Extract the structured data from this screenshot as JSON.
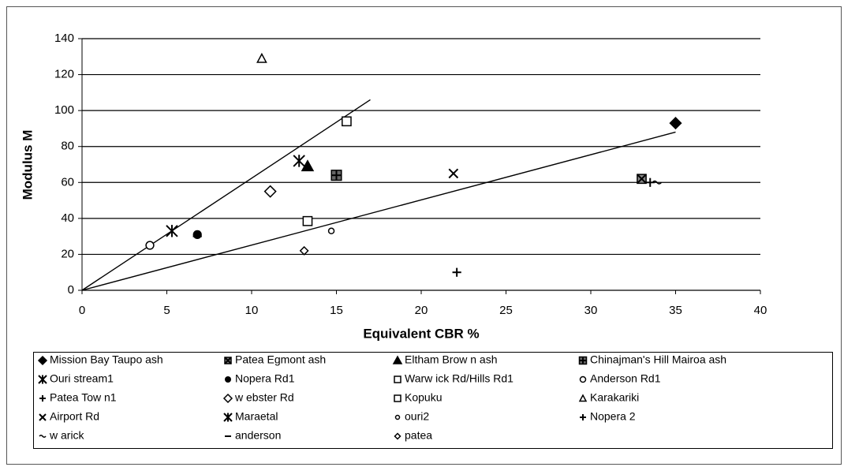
{
  "chart_data": {
    "type": "scatter",
    "x_label": "Equivalent CBR %",
    "y_label": "Modulus M",
    "xlim": [
      0,
      40
    ],
    "xticks": [
      0,
      5,
      10,
      15,
      20,
      25,
      30,
      35,
      40
    ],
    "ylim": [
      0,
      140
    ],
    "yticks": [
      0,
      20,
      40,
      60,
      80,
      100,
      120,
      140
    ],
    "grid": true,
    "color": "#000000",
    "legend": "bottom",
    "series": [
      {
        "name": "Mission Bay Taupo ash",
        "marker": "diamond-filled",
        "x": [
          35
        ],
        "values": [
          93
        ]
      },
      {
        "name": "Patea Egmont ash",
        "marker": "square-hatched",
        "x": [
          33
        ],
        "values": [
          62
        ]
      },
      {
        "name": "Eltham Brow n ash",
        "marker": "triangle-filled",
        "x": [
          13.3
        ],
        "values": [
          69
        ]
      },
      {
        "name": "Chinajman's Hill Mairoa ash",
        "marker": "square-crosshatch",
        "x": [
          15
        ],
        "values": [
          64
        ]
      },
      {
        "name": "Ouri stream1",
        "marker": "asterisk",
        "x": [
          12.8
        ],
        "values": [
          72
        ]
      },
      {
        "name": "Nopera Rd1",
        "marker": "circle-filled",
        "x": [
          6.8
        ],
        "values": [
          31
        ]
      },
      {
        "name": "Warw ick Rd/Hills Rd1",
        "marker": "square-open",
        "x": [
          13.3
        ],
        "values": [
          38.5
        ]
      },
      {
        "name": "Anderson Rd1",
        "marker": "circle-open",
        "x": [
          4
        ],
        "values": [
          25
        ]
      },
      {
        "name": "Patea Tow n1",
        "marker": "plus",
        "x": [
          33.5
        ],
        "values": [
          60
        ]
      },
      {
        "name": "w ebster Rd",
        "marker": "diamond-open",
        "x": [
          11.1
        ],
        "values": [
          55
        ]
      },
      {
        "name": "Kopuku",
        "marker": "square-open",
        "x": [
          15.6
        ],
        "values": [
          94
        ]
      },
      {
        "name": "Karakariki",
        "marker": "triangle-open",
        "x": [
          10.6
        ],
        "values": [
          129
        ]
      },
      {
        "name": "Airport Rd",
        "marker": "x",
        "x": [
          21.9
        ],
        "values": [
          65
        ]
      },
      {
        "name": "Maraetal",
        "marker": "asterisk",
        "x": [
          5.3
        ],
        "values": [
          33
        ]
      },
      {
        "name": "ouri2",
        "marker": "circle-small",
        "x": [
          14.7
        ],
        "values": [
          33
        ]
      },
      {
        "name": "Nopera 2",
        "marker": "plus",
        "x": [
          22.1
        ],
        "values": [
          10
        ]
      },
      {
        "name": "w arick",
        "marker": "tilde",
        "x": [
          33.9
        ],
        "values": [
          60
        ]
      },
      {
        "name": "anderson",
        "marker": "dash",
        "x": [
          6.8
        ],
        "values": [
          30
        ]
      },
      {
        "name": "patea",
        "marker": "diamond-small",
        "x": [
          13.1
        ],
        "values": [
          22
        ]
      }
    ],
    "lines": [
      {
        "x": [
          0,
          17
        ],
        "values": [
          0,
          106
        ]
      },
      {
        "x": [
          0,
          35
        ],
        "values": [
          0,
          88
        ]
      }
    ]
  }
}
